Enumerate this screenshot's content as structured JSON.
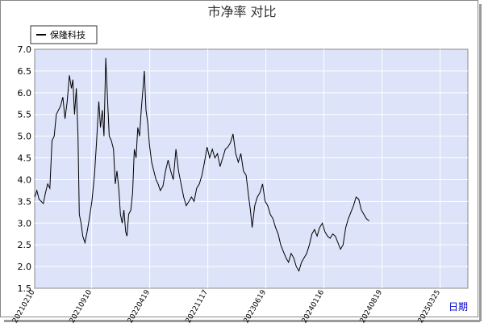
{
  "chart_data": {
    "type": "line",
    "title": "市净率  对比",
    "xlabel": "日期",
    "ylabel": "",
    "ylim": [
      1.5,
      7.0
    ],
    "yticks": [
      "1.5",
      "2.0",
      "2.5",
      "3.0",
      "3.5",
      "4.0",
      "4.5",
      "5.0",
      "5.5",
      "6.0",
      "6.5",
      "7.0"
    ],
    "grid": true,
    "legend": "top-left",
    "colors": {
      "plot_bg": "#dde3f8",
      "grid": "#ffffff",
      "line": "#000000",
      "frame": "#888888"
    },
    "x_ticks": [
      {
        "label": "20210210",
        "t": 0.0
      },
      {
        "label": "20210910",
        "t": 0.1315
      },
      {
        "label": "20220419",
        "t": 0.2656
      },
      {
        "label": "20221117",
        "t": 0.3997
      },
      {
        "label": "20230619",
        "t": 0.5337
      },
      {
        "label": "20240116",
        "t": 0.6678
      },
      {
        "label": "20240819",
        "t": 0.8019
      },
      {
        "label": "20250325",
        "t": 0.936
      }
    ],
    "series": [
      {
        "name": "保隆科技",
        "points": [
          [
            0.0,
            3.6
          ],
          [
            0.005,
            3.75
          ],
          [
            0.01,
            3.55
          ],
          [
            0.015,
            3.5
          ],
          [
            0.02,
            3.45
          ],
          [
            0.025,
            3.7
          ],
          [
            0.03,
            3.9
          ],
          [
            0.035,
            3.8
          ],
          [
            0.04,
            4.9
          ],
          [
            0.045,
            5.0
          ],
          [
            0.05,
            5.5
          ],
          [
            0.055,
            5.6
          ],
          [
            0.06,
            5.7
          ],
          [
            0.065,
            5.9
          ],
          [
            0.07,
            5.4
          ],
          [
            0.075,
            5.8
          ],
          [
            0.08,
            6.4
          ],
          [
            0.085,
            6.1
          ],
          [
            0.088,
            6.3
          ],
          [
            0.092,
            5.5
          ],
          [
            0.096,
            6.1
          ],
          [
            0.1,
            5.0
          ],
          [
            0.103,
            3.2
          ],
          [
            0.107,
            3.0
          ],
          [
            0.111,
            2.7
          ],
          [
            0.116,
            2.55
          ],
          [
            0.121,
            2.8
          ],
          [
            0.126,
            3.1
          ],
          [
            0.132,
            3.5
          ],
          [
            0.138,
            4.1
          ],
          [
            0.143,
            4.9
          ],
          [
            0.148,
            5.8
          ],
          [
            0.152,
            5.2
          ],
          [
            0.156,
            5.6
          ],
          [
            0.16,
            5.0
          ],
          [
            0.164,
            6.8
          ],
          [
            0.168,
            5.9
          ],
          [
            0.172,
            5.0
          ],
          [
            0.177,
            4.9
          ],
          [
            0.182,
            4.7
          ],
          [
            0.186,
            3.9
          ],
          [
            0.19,
            4.2
          ],
          [
            0.194,
            3.8
          ],
          [
            0.198,
            3.2
          ],
          [
            0.202,
            3.0
          ],
          [
            0.206,
            3.3
          ],
          [
            0.21,
            2.8
          ],
          [
            0.213,
            2.7
          ],
          [
            0.217,
            3.2
          ],
          [
            0.222,
            3.3
          ],
          [
            0.226,
            3.7
          ],
          [
            0.23,
            4.7
          ],
          [
            0.234,
            4.5
          ],
          [
            0.238,
            5.2
          ],
          [
            0.242,
            5.0
          ],
          [
            0.246,
            5.6
          ],
          [
            0.25,
            6.1
          ],
          [
            0.253,
            6.5
          ],
          [
            0.257,
            5.6
          ],
          [
            0.261,
            5.3
          ],
          [
            0.265,
            4.8
          ],
          [
            0.27,
            4.4
          ],
          [
            0.275,
            4.2
          ],
          [
            0.28,
            4.0
          ],
          [
            0.285,
            3.9
          ],
          [
            0.29,
            3.75
          ],
          [
            0.296,
            3.85
          ],
          [
            0.302,
            4.2
          ],
          [
            0.308,
            4.45
          ],
          [
            0.314,
            4.2
          ],
          [
            0.32,
            4.0
          ],
          [
            0.326,
            4.7
          ],
          [
            0.332,
            4.2
          ],
          [
            0.338,
            3.9
          ],
          [
            0.344,
            3.6
          ],
          [
            0.35,
            3.4
          ],
          [
            0.356,
            3.5
          ],
          [
            0.362,
            3.6
          ],
          [
            0.368,
            3.5
          ],
          [
            0.374,
            3.8
          ],
          [
            0.38,
            3.9
          ],
          [
            0.386,
            4.1
          ],
          [
            0.392,
            4.4
          ],
          [
            0.398,
            4.75
          ],
          [
            0.404,
            4.5
          ],
          [
            0.41,
            4.7
          ],
          [
            0.416,
            4.5
          ],
          [
            0.422,
            4.6
          ],
          [
            0.428,
            4.3
          ],
          [
            0.434,
            4.5
          ],
          [
            0.44,
            4.7
          ],
          [
            0.446,
            4.75
          ],
          [
            0.452,
            4.85
          ],
          [
            0.458,
            5.05
          ],
          [
            0.464,
            4.6
          ],
          [
            0.47,
            4.4
          ],
          [
            0.476,
            4.6
          ],
          [
            0.482,
            4.2
          ],
          [
            0.488,
            4.1
          ],
          [
            0.494,
            3.6
          ],
          [
            0.498,
            3.3
          ],
          [
            0.502,
            2.9
          ],
          [
            0.508,
            3.4
          ],
          [
            0.514,
            3.6
          ],
          [
            0.52,
            3.7
          ],
          [
            0.526,
            3.9
          ],
          [
            0.532,
            3.5
          ],
          [
            0.538,
            3.4
          ],
          [
            0.544,
            3.2
          ],
          [
            0.55,
            3.1
          ],
          [
            0.556,
            2.9
          ],
          [
            0.562,
            2.75
          ],
          [
            0.568,
            2.5
          ],
          [
            0.574,
            2.35
          ],
          [
            0.58,
            2.2
          ],
          [
            0.586,
            2.1
          ],
          [
            0.592,
            2.3
          ],
          [
            0.598,
            2.2
          ],
          [
            0.604,
            2.0
          ],
          [
            0.61,
            1.9
          ],
          [
            0.616,
            2.1
          ],
          [
            0.622,
            2.2
          ],
          [
            0.628,
            2.3
          ],
          [
            0.634,
            2.5
          ],
          [
            0.64,
            2.75
          ],
          [
            0.646,
            2.85
          ],
          [
            0.652,
            2.7
          ],
          [
            0.658,
            2.9
          ],
          [
            0.664,
            3.0
          ],
          [
            0.67,
            2.8
          ],
          [
            0.676,
            2.7
          ],
          [
            0.682,
            2.65
          ],
          [
            0.688,
            2.75
          ],
          [
            0.694,
            2.7
          ],
          [
            0.7,
            2.55
          ],
          [
            0.706,
            2.4
          ],
          [
            0.712,
            2.5
          ],
          [
            0.718,
            2.9
          ],
          [
            0.724,
            3.1
          ],
          [
            0.73,
            3.25
          ],
          [
            0.736,
            3.4
          ],
          [
            0.742,
            3.6
          ],
          [
            0.748,
            3.55
          ],
          [
            0.754,
            3.3
          ],
          [
            0.76,
            3.2
          ],
          [
            0.766,
            3.1
          ],
          [
            0.772,
            3.05
          ]
        ]
      }
    ]
  }
}
